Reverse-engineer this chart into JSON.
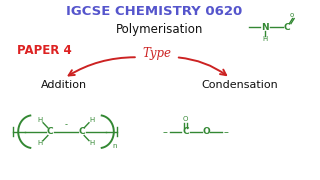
{
  "bg_color": "#ffffff",
  "title_text": "IGCSE CHEMISTRY 0620",
  "title_color": "#5555cc",
  "poly_text": "Polymerisation",
  "poly_color": "#111111",
  "paper_text": "PAPER 4",
  "paper_color": "#dd2222",
  "type_text": "Type",
  "type_color": "#cc2222",
  "addition_text": "Addition",
  "addition_color": "#111111",
  "condensation_text": "Condensation",
  "condensation_color": "#111111",
  "green": "#338833",
  "arrow_color": "#cc2222",
  "xlim": [
    0,
    10
  ],
  "ylim": [
    0,
    6
  ]
}
